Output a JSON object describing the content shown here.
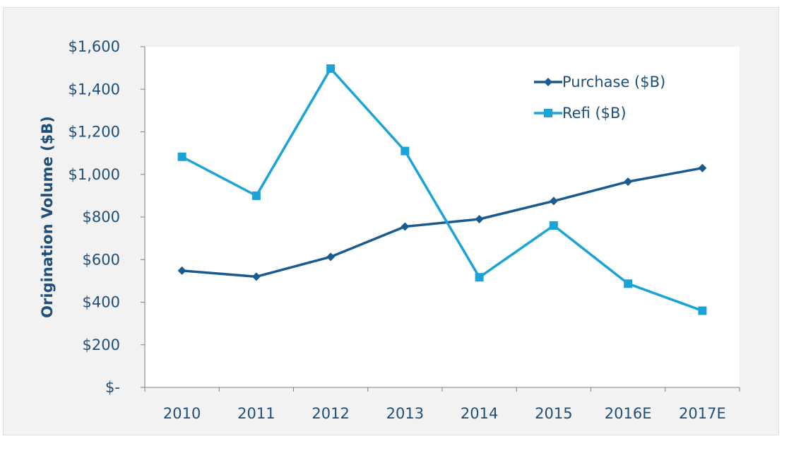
{
  "chart_data": {
    "type": "line",
    "categories": [
      "2010",
      "2011",
      "2012",
      "2013",
      "2014",
      "2015",
      "2016E",
      "2017E"
    ],
    "series": [
      {
        "name": "Purchase ($B)",
        "values": [
          548,
          520,
          613,
          755,
          790,
          875,
          966,
          1030
        ],
        "color": "#1a5a8e",
        "marker": "diamond"
      },
      {
        "name": "Refi ($B)",
        "values": [
          1083,
          900,
          1497,
          1110,
          517,
          760,
          487,
          360
        ],
        "color": "#1ba3d8",
        "marker": "square"
      }
    ],
    "ylabel": "Origination Volume ($B)",
    "ylim": [
      0,
      1600
    ],
    "yticks": [
      {
        "value": 0,
        "label": "$-"
      },
      {
        "value": 200,
        "label": "$200"
      },
      {
        "value": 400,
        "label": "$400"
      },
      {
        "value": 600,
        "label": "$600"
      },
      {
        "value": 800,
        "label": "$800"
      },
      {
        "value": 1000,
        "label": "$1,000"
      },
      {
        "value": 1200,
        "label": "$1,200"
      },
      {
        "value": 1400,
        "label": "$1,400"
      },
      {
        "value": 1600,
        "label": "$1,600"
      }
    ],
    "grid": false,
    "legend": "top-right"
  }
}
